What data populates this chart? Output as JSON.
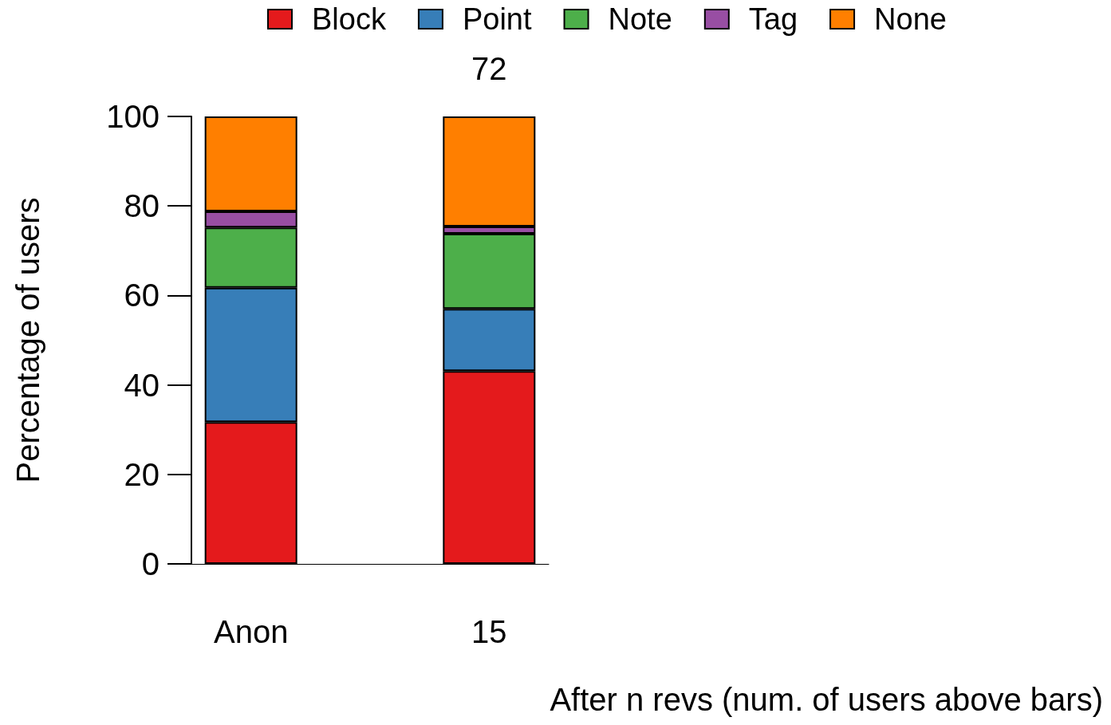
{
  "chart_data": {
    "type": "bar",
    "stacked": true,
    "xlabel": "After n revs (num. of users above bars)",
    "ylabel": "Percentage of users",
    "categories": [
      "Anon",
      null,
      "15"
    ],
    "series": [
      {
        "name": "Block",
        "color": "#e41a1c",
        "values": [
          31.7,
          null,
          43.1
        ]
      },
      {
        "name": "Point",
        "color": "#377eb8",
        "values": [
          30,
          null,
          13.9
        ]
      },
      {
        "name": "Note",
        "color": "#4daf4a",
        "values": [
          13.5,
          null,
          16.8
        ]
      },
      {
        "name": "Tag",
        "color": "#984ea3",
        "values": [
          3.6,
          null,
          1.6
        ]
      },
      {
        "name": "None",
        "color": "#ff7f00",
        "values": [
          21.2,
          null,
          24.6
        ]
      }
    ],
    "annotations": [
      {
        "text": "72",
        "x": "15",
        "y": 100
      }
    ],
    "ylim": [
      0,
      100
    ],
    "yticks": [
      0,
      20,
      40,
      60,
      80,
      100
    ],
    "grid": false,
    "legend": "top"
  }
}
